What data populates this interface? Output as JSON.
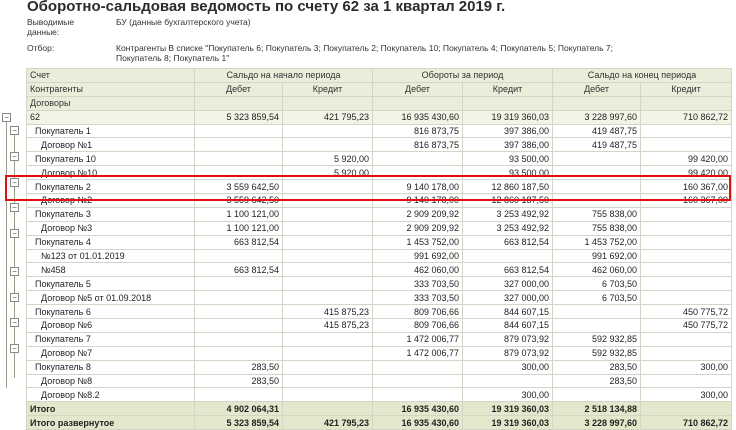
{
  "title": "Оборотно-сальдовая ведомость по счету 62 за 1 квартал 2019 г.",
  "meta": {
    "data_label": "Выводимые данные:",
    "data_value": "БУ (данные бухгалтерского учета)",
    "filter_label": "Отбор:",
    "filter_value": "Контрагенты В списке \"Покупатель 6; Покупатель 3; Покупатель 2; Покупатель 10; Покупатель 4; Покупатель 5; Покупатель 7; Покупатель 8; Покупатель 1\""
  },
  "header": {
    "col_account": "Счет",
    "col_contractors": "Контрагенты",
    "col_contracts": "Договоры",
    "group_open": "Сальдо на начало периода",
    "group_turnover": "Обороты за период",
    "group_close": "Сальдо на конец периода",
    "debit": "Дебет",
    "credit": "Кредит"
  },
  "rows": [
    {
      "level": 0,
      "name": "62",
      "od": "5 323 859,54",
      "oc": "421 795,23",
      "td": "16 935 430,60",
      "tc": "19 319 360,03",
      "cd": "3 228 997,60",
      "cc": "710 862,72"
    },
    {
      "level": 1,
      "name": "Покупатель 1",
      "od": "",
      "oc": "",
      "td": "816 873,75",
      "tc": "397 386,00",
      "cd": "419 487,75",
      "cc": ""
    },
    {
      "level": 2,
      "name": "Договор №1",
      "od": "",
      "oc": "",
      "td": "816 873,75",
      "tc": "397 386,00",
      "cd": "419 487,75",
      "cc": ""
    },
    {
      "level": 1,
      "name": "Покупатель 10",
      "od": "",
      "oc": "5 920,00",
      "td": "",
      "tc": "93 500,00",
      "cd": "",
      "cc": "99 420,00"
    },
    {
      "level": 2,
      "name": "Договор №10",
      "od": "",
      "oc": "5 920,00",
      "td": "",
      "tc": "93 500,00",
      "cd": "",
      "cc": "99 420,00"
    },
    {
      "level": 1,
      "name": "Покупатель 2",
      "od": "3 559 642,50",
      "oc": "",
      "td": "9 140 178,00",
      "tc": "12 860 187,50",
      "cd": "",
      "cc": "160 367,00"
    },
    {
      "level": 2,
      "name": "Договор №2",
      "od": "3 559 642,50",
      "oc": "",
      "td": "9 140 178,00",
      "tc": "12 860 187,50",
      "cd": "",
      "cc": "160 367,00"
    },
    {
      "level": 1,
      "name": "Покупатель 3",
      "od": "1 100 121,00",
      "oc": "",
      "td": "2 909 209,92",
      "tc": "3 253 492,92",
      "cd": "755 838,00",
      "cc": ""
    },
    {
      "level": 2,
      "name": "Договор №3",
      "od": "1 100 121,00",
      "oc": "",
      "td": "2 909 209,92",
      "tc": "3 253 492,92",
      "cd": "755 838,00",
      "cc": ""
    },
    {
      "level": 1,
      "name": "Покупатель 4",
      "od": "663 812,54",
      "oc": "",
      "td": "1 453 752,00",
      "tc": "663 812,54",
      "cd": "1 453 752,00",
      "cc": ""
    },
    {
      "level": 2,
      "name": "№123 от 01.01.2019",
      "od": "",
      "oc": "",
      "td": "991 692,00",
      "tc": "",
      "cd": "991 692,00",
      "cc": ""
    },
    {
      "level": 2,
      "name": "№458",
      "od": "663 812,54",
      "oc": "",
      "td": "462 060,00",
      "tc": "663 812,54",
      "cd": "462 060,00",
      "cc": ""
    },
    {
      "level": 1,
      "name": "Покупатель 5",
      "od": "",
      "oc": "",
      "td": "333 703,50",
      "tc": "327 000,00",
      "cd": "6 703,50",
      "cc": ""
    },
    {
      "level": 2,
      "name": "Договор №5 от 01.09.2018",
      "od": "",
      "oc": "",
      "td": "333 703,50",
      "tc": "327 000,00",
      "cd": "6 703,50",
      "cc": ""
    },
    {
      "level": 1,
      "name": "Покупатель 6",
      "od": "",
      "oc": "415 875,23",
      "td": "809 706,66",
      "tc": "844 607,15",
      "cd": "",
      "cc": "450 775,72"
    },
    {
      "level": 2,
      "name": "Договор №6",
      "od": "",
      "oc": "415 875,23",
      "td": "809 706,66",
      "tc": "844 607,15",
      "cd": "",
      "cc": "450 775,72"
    },
    {
      "level": 1,
      "name": "Покупатель 7",
      "od": "",
      "oc": "",
      "td": "1 472 006,77",
      "tc": "879 073,92",
      "cd": "592 932,85",
      "cc": ""
    },
    {
      "level": 2,
      "name": "Договор №7",
      "od": "",
      "oc": "",
      "td": "1 472 006,77",
      "tc": "879 073,92",
      "cd": "592 932,85",
      "cc": ""
    },
    {
      "level": 1,
      "name": "Покупатель 8",
      "od": "283,50",
      "oc": "",
      "td": "",
      "tc": "300,00",
      "cd": "283,50",
      "cc": "300,00"
    },
    {
      "level": 2,
      "name": "Договор №8",
      "od": "283,50",
      "oc": "",
      "td": "",
      "tc": "",
      "cd": "283,50",
      "cc": ""
    },
    {
      "level": 2,
      "name": "Договор №8.2",
      "od": "",
      "oc": "",
      "td": "",
      "tc": "300,00",
      "cd": "",
      "cc": "300,00"
    }
  ],
  "totals": [
    {
      "name": "Итого",
      "od": "4 902 064,31",
      "oc": "",
      "td": "16 935 430,60",
      "tc": "19 319 360,03",
      "cd": "2 518 134,88",
      "cc": ""
    },
    {
      "name": "Итого развернутое",
      "od": "5 323 859,54",
      "oc": "421 795,23",
      "td": "16 935 430,60",
      "tc": "19 319 360,03",
      "cd": "3 228 997,60",
      "cc": "710 862,72"
    }
  ],
  "highlight_color": "#e01010"
}
